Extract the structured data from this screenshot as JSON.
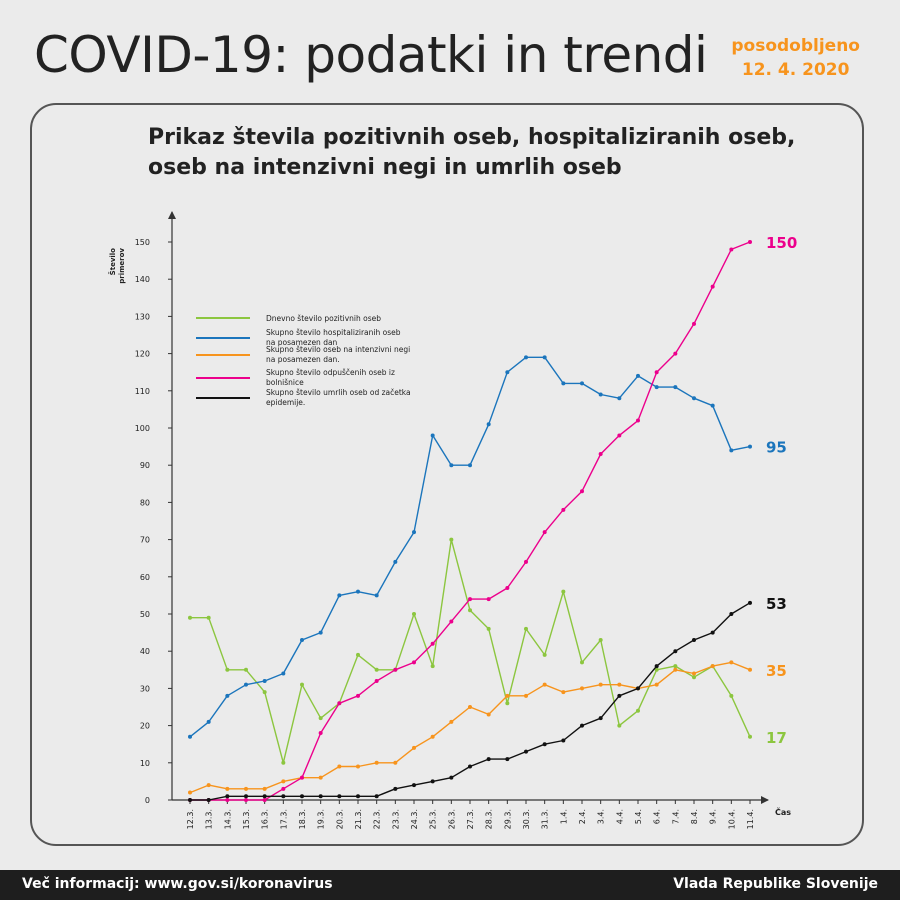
{
  "header": {
    "title": "COVID-19: podatki in trendi",
    "updated_label": "posodobljeno",
    "updated_date": "12. 4. 2020"
  },
  "footer": {
    "left": "Več informacij: www.gov.si/koronavirus",
    "right": "Vlada Republike Slovenije"
  },
  "chart_data": {
    "type": "line",
    "title": "Prikaz števila pozitivnih oseb, hospitaliziranih oseb, oseb na intenzivni negi in umrlih oseb",
    "ylabel": "Število primerov",
    "xlabel": "Čas",
    "ylim": [
      0,
      150
    ],
    "yticks": [
      0,
      10,
      20,
      30,
      40,
      50,
      60,
      70,
      80,
      90,
      100,
      110,
      120,
      130,
      140,
      150
    ],
    "grid": false,
    "legend_position": "top-left",
    "x": [
      "12.3.",
      "13.3.",
      "14.3.",
      "15.3.",
      "16.3.",
      "17.3.",
      "18.3.",
      "19.3.",
      "20.3.",
      "21.3.",
      "22.3.",
      "23.3.",
      "24.3.",
      "25.3.",
      "26.3.",
      "27.3.",
      "28.3.",
      "29.3.",
      "30.3.",
      "31.3.",
      "1.4.",
      "2.4.",
      "3.4.",
      "4.4.",
      "5.4.",
      "6.4.",
      "7.4.",
      "8.4.",
      "9.4.",
      "10.4.",
      "11.4."
    ],
    "series": [
      {
        "name": "Dnevno število pozitivnih oseb",
        "color": "#8cc63f",
        "end_label": "17",
        "values": [
          49,
          49,
          35,
          35,
          29,
          10,
          31,
          22,
          26,
          39,
          35,
          35,
          50,
          36,
          70,
          51,
          46,
          26,
          46,
          39,
          56,
          37,
          43,
          20,
          24,
          35,
          36,
          33,
          36,
          28,
          17
        ]
      },
      {
        "name": "Skupno število hospitaliziranih oseb na posamezen dan",
        "color": "#1b75bc",
        "end_label": "95",
        "values": [
          17,
          21,
          28,
          31,
          32,
          34,
          43,
          45,
          55,
          56,
          55,
          64,
          72,
          98,
          90,
          90,
          101,
          115,
          119,
          119,
          112,
          112,
          109,
          108,
          114,
          111,
          111,
          108,
          106,
          94,
          95
        ]
      },
      {
        "name": "Skupno število oseb na intenzivni negi na posamezen dan.",
        "color": "#f7941d",
        "end_label": "35",
        "values": [
          2,
          4,
          3,
          3,
          3,
          5,
          6,
          6,
          9,
          9,
          10,
          10,
          14,
          17,
          21,
          25,
          23,
          28,
          28,
          31,
          29,
          30,
          31,
          31,
          30,
          31,
          35,
          34,
          36,
          37,
          35
        ]
      },
      {
        "name": "Skupno število odpuščenih oseb iz bolnišnice",
        "color": "#ec008c",
        "end_label": "150",
        "values": [
          0,
          0,
          0,
          0,
          0,
          3,
          6,
          18,
          26,
          28,
          32,
          35,
          37,
          42,
          48,
          54,
          54,
          57,
          64,
          72,
          78,
          83,
          93,
          98,
          102,
          115,
          120,
          128,
          138,
          148,
          150
        ]
      },
      {
        "name": "Skupno število umrlih oseb od začetka epidemije.",
        "color": "#111111",
        "end_label": "53",
        "values": [
          0,
          0,
          1,
          1,
          1,
          1,
          1,
          1,
          1,
          1,
          1,
          3,
          4,
          5,
          6,
          9,
          11,
          11,
          13,
          15,
          16,
          20,
          22,
          28,
          30,
          36,
          40,
          43,
          45,
          50,
          53
        ]
      }
    ]
  }
}
